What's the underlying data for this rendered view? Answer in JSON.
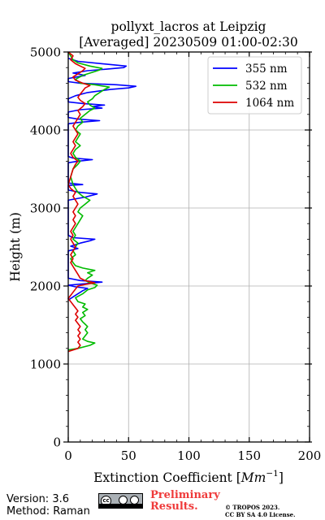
{
  "chart_data": {
    "type": "line",
    "title": "pollyxt_lacros at Leipzig",
    "subtitle": "[Averaged] 20230509 01:00-02:30",
    "xlabel": "Extinction Coefficient [Mm⁻¹]",
    "xlabel_base": "Extinction Coefficient [",
    "xlabel_unit": "Mm",
    "xlabel_sup": "−1",
    "xlabel_close": "]",
    "ylabel": "Height (m)",
    "xlim": [
      0,
      200
    ],
    "ylim": [
      0,
      5000
    ],
    "xticks": [
      0,
      50,
      100,
      150,
      200
    ],
    "yticks": [
      0,
      1000,
      2000,
      3000,
      4000,
      5000
    ],
    "grid": true,
    "legend_position": "upper right",
    "series": [
      {
        "name": "355 nm",
        "color": "#0000ff",
        "points": [
          [
            0,
            1820
          ],
          [
            4,
            1860
          ],
          [
            8,
            1900
          ],
          [
            12,
            1940
          ],
          [
            16,
            1970
          ],
          [
            6,
            1990
          ],
          [
            0,
            2010
          ],
          [
            15,
            2030
          ],
          [
            28,
            2050
          ],
          [
            10,
            2070
          ],
          [
            0,
            2100
          ],
          [
            0,
            2450
          ],
          [
            8,
            2480
          ],
          [
            2,
            2510
          ],
          [
            10,
            2550
          ],
          [
            18,
            2580
          ],
          [
            22,
            2600
          ],
          [
            4,
            2620
          ],
          [
            0,
            2650
          ],
          [
            0,
            3100
          ],
          [
            14,
            3140
          ],
          [
            24,
            3180
          ],
          [
            10,
            3200
          ],
          [
            0,
            3230
          ],
          [
            0,
            3290
          ],
          [
            12,
            3300
          ],
          [
            0,
            3320
          ],
          [
            0,
            3580
          ],
          [
            8,
            3600
          ],
          [
            20,
            3620
          ],
          [
            4,
            3640
          ],
          [
            0,
            3660
          ],
          [
            0,
            4080
          ],
          [
            10,
            4100
          ],
          [
            26,
            4120
          ],
          [
            8,
            4140
          ],
          [
            0,
            4160
          ],
          [
            0,
            4230
          ],
          [
            10,
            4260
          ],
          [
            28,
            4280
          ],
          [
            20,
            4300
          ],
          [
            30,
            4320
          ],
          [
            12,
            4340
          ],
          [
            0,
            4360
          ],
          [
            0,
            4400
          ],
          [
            6,
            4440
          ],
          [
            16,
            4480
          ],
          [
            35,
            4520
          ],
          [
            50,
            4540
          ],
          [
            56,
            4560
          ],
          [
            40,
            4580
          ],
          [
            10,
            4600
          ],
          [
            0,
            4620
          ],
          [
            0,
            4660
          ],
          [
            14,
            4700
          ],
          [
            4,
            4730
          ],
          [
            16,
            4760
          ],
          [
            32,
            4780
          ],
          [
            46,
            4800
          ],
          [
            48,
            4820
          ],
          [
            28,
            4850
          ],
          [
            8,
            4880
          ],
          [
            0,
            4920
          ]
        ]
      },
      {
        "name": "532 nm",
        "color": "#00bb00",
        "points": [
          [
            0,
            1180
          ],
          [
            8,
            1200
          ],
          [
            18,
            1240
          ],
          [
            22,
            1270
          ],
          [
            16,
            1290
          ],
          [
            12,
            1320
          ],
          [
            14,
            1360
          ],
          [
            16,
            1400
          ],
          [
            14,
            1440
          ],
          [
            16,
            1480
          ],
          [
            14,
            1510
          ],
          [
            12,
            1540
          ],
          [
            10,
            1580
          ],
          [
            14,
            1620
          ],
          [
            12,
            1660
          ],
          [
            16,
            1700
          ],
          [
            12,
            1730
          ],
          [
            14,
            1770
          ],
          [
            8,
            1800
          ],
          [
            6,
            1850
          ],
          [
            12,
            1900
          ],
          [
            16,
            1950
          ],
          [
            22,
            1980
          ],
          [
            24,
            2010
          ],
          [
            18,
            2040
          ],
          [
            14,
            2070
          ],
          [
            16,
            2100
          ],
          [
            20,
            2140
          ],
          [
            16,
            2170
          ],
          [
            22,
            2200
          ],
          [
            12,
            2230
          ],
          [
            6,
            2260
          ],
          [
            4,
            2300
          ],
          [
            2,
            2350
          ],
          [
            6,
            2400
          ],
          [
            4,
            2450
          ],
          [
            6,
            2500
          ],
          [
            8,
            2550
          ],
          [
            4,
            2600
          ],
          [
            6,
            2650
          ],
          [
            4,
            2700
          ],
          [
            6,
            2750
          ],
          [
            8,
            2800
          ],
          [
            10,
            2850
          ],
          [
            12,
            2900
          ],
          [
            8,
            2950
          ],
          [
            10,
            3000
          ],
          [
            14,
            3050
          ],
          [
            18,
            3100
          ],
          [
            12,
            3150
          ],
          [
            8,
            3200
          ],
          [
            6,
            3250
          ],
          [
            4,
            3300
          ],
          [
            2,
            3400
          ],
          [
            4,
            3500
          ],
          [
            8,
            3560
          ],
          [
            10,
            3600
          ],
          [
            6,
            3650
          ],
          [
            4,
            3700
          ],
          [
            6,
            3750
          ],
          [
            10,
            3800
          ],
          [
            6,
            3850
          ],
          [
            8,
            3900
          ],
          [
            10,
            3950
          ],
          [
            6,
            4000
          ],
          [
            8,
            4050
          ],
          [
            12,
            4100
          ],
          [
            10,
            4150
          ],
          [
            14,
            4200
          ],
          [
            18,
            4250
          ],
          [
            22,
            4280
          ],
          [
            18,
            4320
          ],
          [
            16,
            4360
          ],
          [
            20,
            4400
          ],
          [
            22,
            4440
          ],
          [
            26,
            4480
          ],
          [
            30,
            4520
          ],
          [
            34,
            4550
          ],
          [
            22,
            4580
          ],
          [
            10,
            4600
          ],
          [
            6,
            4650
          ],
          [
            12,
            4700
          ],
          [
            20,
            4740
          ],
          [
            26,
            4770
          ],
          [
            28,
            4790
          ],
          [
            18,
            4820
          ],
          [
            8,
            4860
          ],
          [
            4,
            4900
          ],
          [
            2,
            4950
          ],
          [
            0,
            5000
          ]
        ]
      },
      {
        "name": "1064 nm",
        "color": "#dd0000",
        "points": [
          [
            0,
            1160
          ],
          [
            4,
            1180
          ],
          [
            8,
            1200
          ],
          [
            10,
            1240
          ],
          [
            8,
            1280
          ],
          [
            10,
            1320
          ],
          [
            8,
            1360
          ],
          [
            10,
            1400
          ],
          [
            8,
            1440
          ],
          [
            10,
            1480
          ],
          [
            8,
            1520
          ],
          [
            6,
            1560
          ],
          [
            8,
            1600
          ],
          [
            6,
            1640
          ],
          [
            8,
            1680
          ],
          [
            6,
            1720
          ],
          [
            4,
            1760
          ],
          [
            2,
            1800
          ],
          [
            0,
            1840
          ],
          [
            2,
            1880
          ],
          [
            4,
            1920
          ],
          [
            6,
            1960
          ],
          [
            8,
            2000
          ],
          [
            14,
            2020
          ],
          [
            22,
            2040
          ],
          [
            14,
            2070
          ],
          [
            10,
            2100
          ],
          [
            8,
            2150
          ],
          [
            6,
            2200
          ],
          [
            4,
            2250
          ],
          [
            2,
            2300
          ],
          [
            4,
            2350
          ],
          [
            2,
            2400
          ],
          [
            4,
            2450
          ],
          [
            6,
            2500
          ],
          [
            4,
            2550
          ],
          [
            2,
            2600
          ],
          [
            4,
            2650
          ],
          [
            2,
            2700
          ],
          [
            4,
            2750
          ],
          [
            6,
            2800
          ],
          [
            4,
            2850
          ],
          [
            6,
            2900
          ],
          [
            4,
            2950
          ],
          [
            6,
            3000
          ],
          [
            8,
            3050
          ],
          [
            6,
            3100
          ],
          [
            4,
            3150
          ],
          [
            6,
            3200
          ],
          [
            2,
            3250
          ],
          [
            0,
            3300
          ],
          [
            2,
            3400
          ],
          [
            4,
            3500
          ],
          [
            6,
            3560
          ],
          [
            8,
            3600
          ],
          [
            4,
            3650
          ],
          [
            2,
            3700
          ],
          [
            4,
            3750
          ],
          [
            6,
            3800
          ],
          [
            4,
            3850
          ],
          [
            6,
            3900
          ],
          [
            8,
            3950
          ],
          [
            6,
            4000
          ],
          [
            4,
            4050
          ],
          [
            6,
            4100
          ],
          [
            8,
            4150
          ],
          [
            10,
            4200
          ],
          [
            8,
            4250
          ],
          [
            12,
            4300
          ],
          [
            14,
            4340
          ],
          [
            10,
            4380
          ],
          [
            8,
            4420
          ],
          [
            10,
            4460
          ],
          [
            12,
            4500
          ],
          [
            14,
            4540
          ],
          [
            18,
            4570
          ],
          [
            12,
            4600
          ],
          [
            6,
            4640
          ],
          [
            4,
            4680
          ],
          [
            8,
            4720
          ],
          [
            12,
            4760
          ],
          [
            14,
            4790
          ],
          [
            10,
            4820
          ],
          [
            6,
            4850
          ],
          [
            2,
            4900
          ],
          [
            4,
            4950
          ],
          [
            0,
            5000
          ]
        ]
      }
    ]
  },
  "footer": {
    "version": "Version: 3.6",
    "method": "Method: Raman",
    "preliminary_line1": "Preliminary",
    "preliminary_line2": "Results.",
    "copyright_line1": "© TROPOS 2023.",
    "copyright_line2": "CC BY SA 4.0 License."
  }
}
